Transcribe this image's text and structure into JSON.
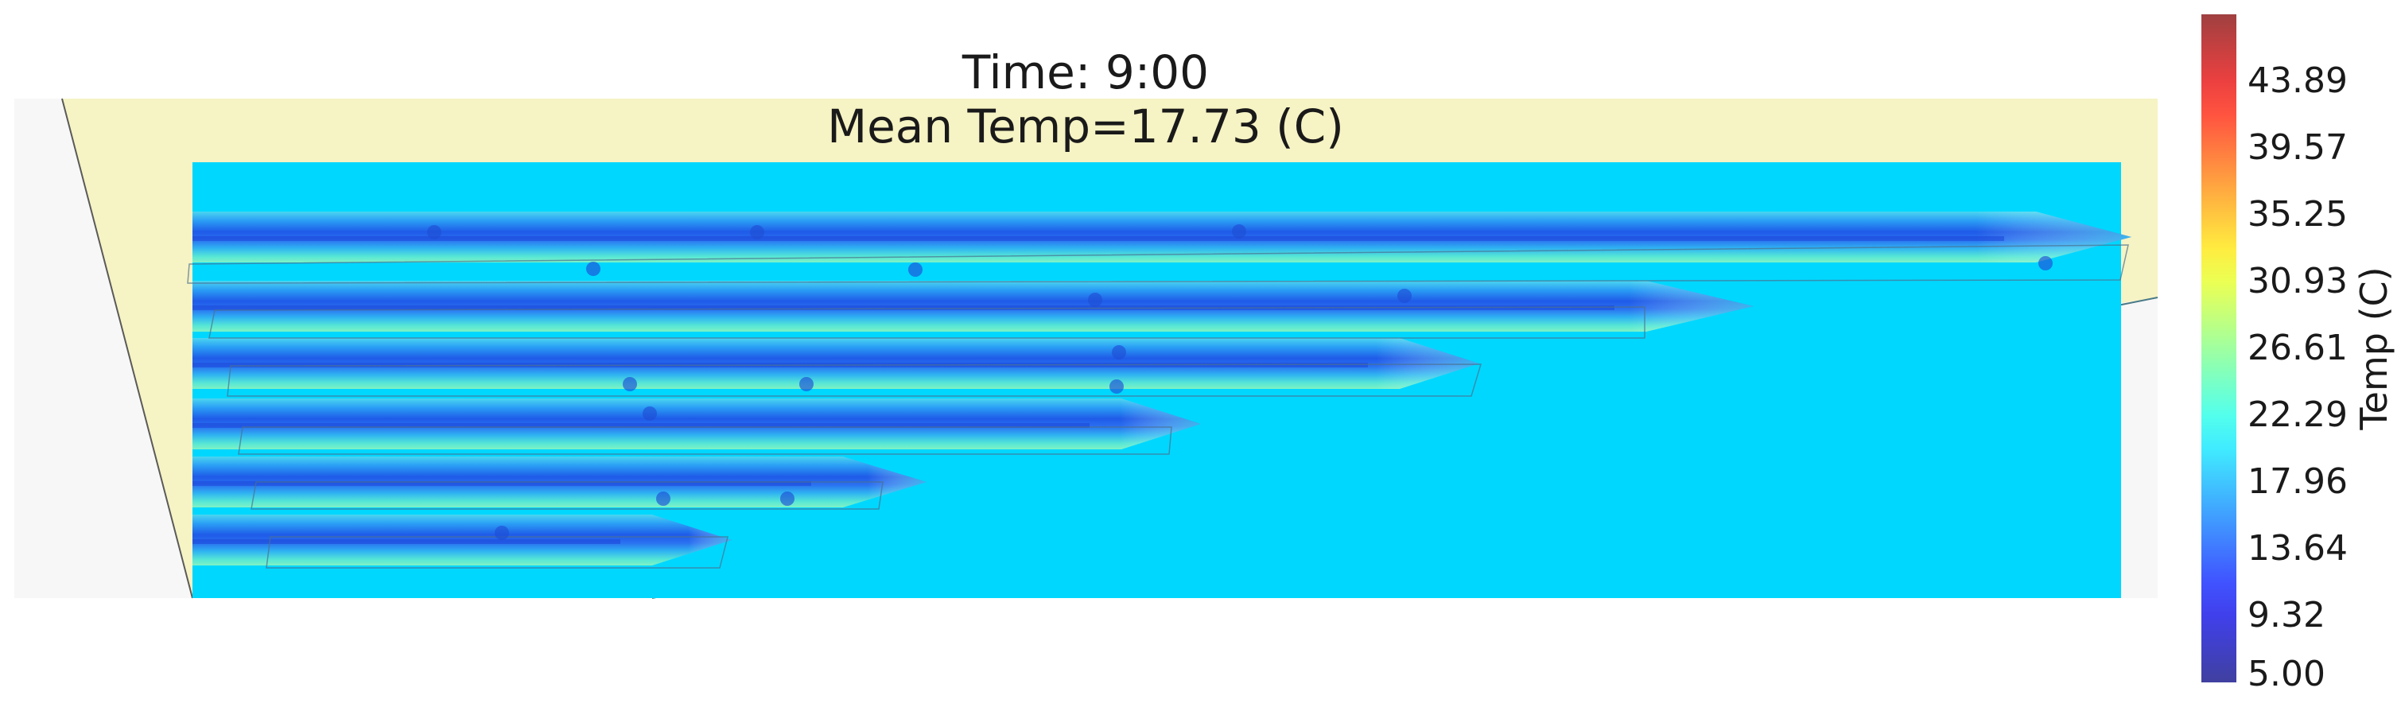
{
  "title_time": "Time: 9:00",
  "title_mean": "Mean Temp=17.73 (C)",
  "colorbar": {
    "label": "Temp (C)",
    "ticks": [
      "5.00",
      "9.32",
      "13.64",
      "17.96",
      "22.29",
      "26.61",
      "30.93",
      "35.25",
      "39.57",
      "43.89"
    ],
    "vmin": 5.0,
    "vmax": 48.2,
    "colormap": "jet",
    "alpha": 0.75
  },
  "chart_data": {
    "type": "heatmap",
    "title": "Time: 9:00 / Mean Temp=17.73 (C)",
    "mean_temp_c": 17.73,
    "value_label": "Temp (C)",
    "background_temp_c": 19.5,
    "row_core_temp_c": 11.5,
    "row_edge_temp_c": 21.5,
    "rows_count": 6,
    "colors": {
      "ground": "#f6f3c4",
      "side": "#f7f7f7",
      "outline": "#5a5a5a",
      "sensor": "#1e4fd6"
    }
  }
}
